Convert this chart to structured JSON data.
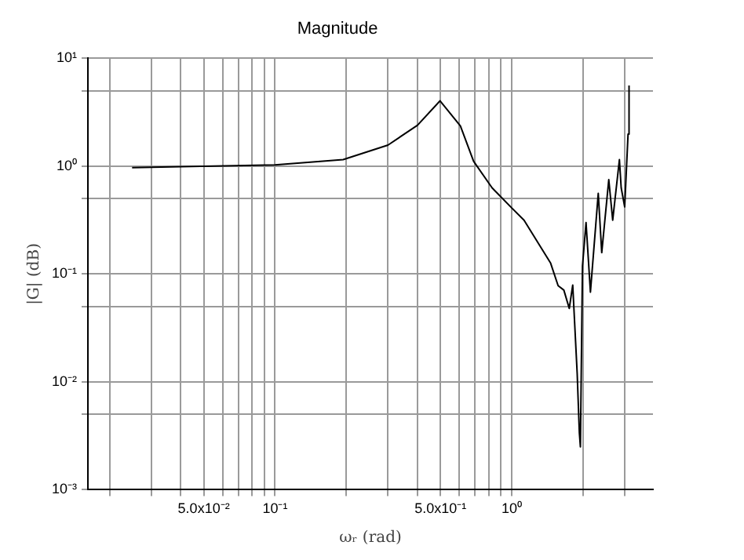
{
  "chart_data": {
    "type": "line",
    "title": "Magnitude",
    "xlabel": "ωᵣ (rad)",
    "ylabel": "|G| (dB)",
    "log": "xy",
    "grid": true,
    "legend": false,
    "marker": "none",
    "line_style": "solid",
    "xlim": [
      0.0162,
      3.95
    ],
    "ylim": [
      0.001,
      10
    ],
    "xticks": [
      {
        "value": 0.02,
        "label": null
      },
      {
        "value": 0.03,
        "label": null
      },
      {
        "value": 0.04,
        "label": null
      },
      {
        "value": 0.05,
        "label": "5.0x10⁻²"
      },
      {
        "value": 0.06,
        "label": null
      },
      {
        "value": 0.07,
        "label": null
      },
      {
        "value": 0.08,
        "label": null
      },
      {
        "value": 0.09,
        "label": null
      },
      {
        "value": 0.1,
        "label": "10⁻¹"
      },
      {
        "value": 0.2,
        "label": null
      },
      {
        "value": 0.3,
        "label": null
      },
      {
        "value": 0.4,
        "label": null
      },
      {
        "value": 0.5,
        "label": "5.0x10⁻¹"
      },
      {
        "value": 0.6,
        "label": null
      },
      {
        "value": 0.7,
        "label": null
      },
      {
        "value": 0.8,
        "label": null
      },
      {
        "value": 0.9,
        "label": null
      },
      {
        "value": 1,
        "label": "10⁰"
      },
      {
        "value": 2,
        "label": null
      },
      {
        "value": 3,
        "label": null
      }
    ],
    "yticks": [
      {
        "value": 0.001,
        "label": "10⁻³"
      },
      {
        "value": 0.005,
        "label": null
      },
      {
        "value": 0.01,
        "label": "10⁻²"
      },
      {
        "value": 0.05,
        "label": null
      },
      {
        "value": 0.1,
        "label": "10⁻¹"
      },
      {
        "value": 0.5,
        "label": null
      },
      {
        "value": 1,
        "label": "10⁰"
      },
      {
        "value": 5,
        "label": null
      },
      {
        "value": 10,
        "label": "10¹"
      }
    ],
    "series": [
      {
        "color": "#000000",
        "x": [
          0.0249,
          0.05,
          0.1,
          0.194,
          0.3,
          0.4,
          0.498,
          0.607,
          0.69,
          0.826,
          1.0,
          1.127,
          1.46,
          1.57,
          1.66,
          1.75,
          1.81,
          1.89,
          1.93,
          1.95,
          1.99,
          2.06,
          2.15,
          2.32,
          2.4,
          2.57,
          2.67,
          2.85,
          2.9,
          3.0,
          3.1,
          3.13
        ],
        "values": [
          0.97,
          1.0,
          1.03,
          1.15,
          1.57,
          2.4,
          4.04,
          2.36,
          1.11,
          0.63,
          0.41,
          0.316,
          0.126,
          0.078,
          0.071,
          0.048,
          0.079,
          0.012,
          0.0034,
          0.0025,
          0.119,
          0.3,
          0.068,
          0.56,
          0.158,
          0.75,
          0.316,
          1.15,
          0.63,
          0.42,
          1.98,
          5.6
        ]
      }
    ]
  }
}
